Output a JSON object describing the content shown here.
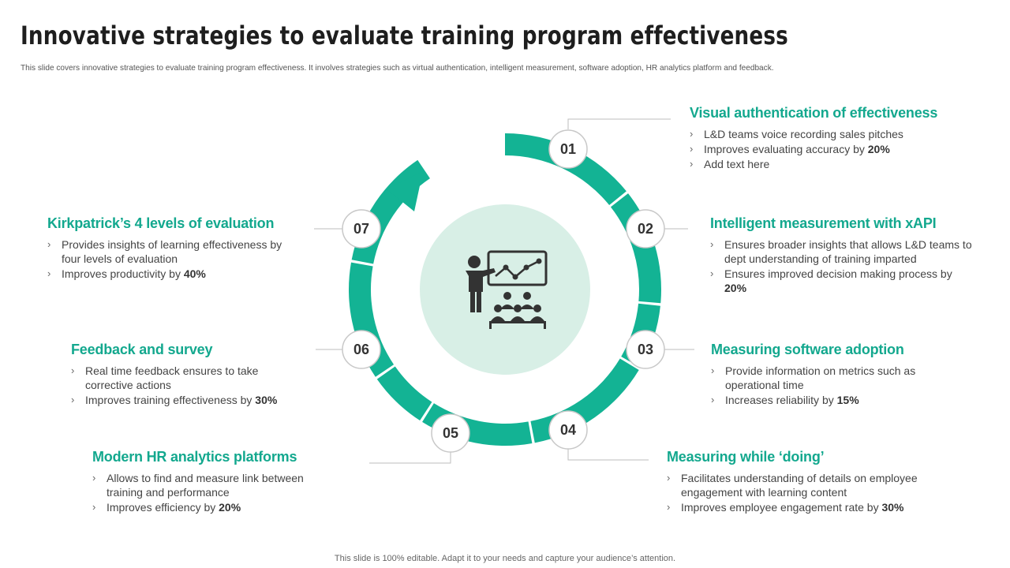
{
  "title": "Innovative strategies to evaluate training program effectiveness",
  "subtitle": "This slide covers innovative strategies to evaluate training program effectiveness. It involves strategies such as virtual authentication, intelligent measurement, software adoption, HR analytics platform and feedback.",
  "footer": "This slide is 100% editable. Adapt it to your needs and capture your audience’s attention.",
  "colors": {
    "accent": "#13b394",
    "heading": "#13a88e",
    "center_disc": "#d8efe6",
    "icon": "#333333"
  },
  "center_icon": "presenter-with-chart-and-audience-icon",
  "steps": [
    {
      "num": "01",
      "title": "Visual authentication of effectiveness",
      "items": [
        {
          "text": "L&D teams voice recording sales pitches",
          "bold": ""
        },
        {
          "text": "Improves evaluating accuracy by ",
          "bold": "20%"
        },
        {
          "text": "Add text here",
          "bold": ""
        }
      ]
    },
    {
      "num": "02",
      "title": "Intelligent measurement with xAPI",
      "items": [
        {
          "text": "Ensures broader insights that allows L&D teams to dept understanding of training imparted",
          "bold": ""
        },
        {
          "text": "Ensures improved decision making process by ",
          "bold": "20%"
        }
      ]
    },
    {
      "num": "03",
      "title": "Measuring software adoption",
      "items": [
        {
          "text": "Provide information on metrics such as operational  time",
          "bold": ""
        },
        {
          "text": "Increases reliability  by ",
          "bold": "15%"
        }
      ]
    },
    {
      "num": "04",
      "title": "Measuring while ‘doing’",
      "items": [
        {
          "text": "Facilitates understanding of details on employee engagement with learning content",
          "bold": ""
        },
        {
          "text": "Improves employee engagement rate by ",
          "bold": "30%"
        }
      ]
    },
    {
      "num": "05",
      "title": "Modern HR analytics platforms",
      "items": [
        {
          "text": "Allows to find and measure link between training and performance",
          "bold": ""
        },
        {
          "text": "Improves efficiency by ",
          "bold": "20%"
        }
      ]
    },
    {
      "num": "06",
      "title": "Feedback and survey",
      "items": [
        {
          "text": "Real time feedback ensures to take corrective actions",
          "bold": ""
        },
        {
          "text": "Improves training effectiveness by ",
          "bold": "30%"
        }
      ]
    },
    {
      "num": "07",
      "title": "Kirkpatrick’s 4 levels of evaluation",
      "items": [
        {
          "text": "Provides insights of learning effectiveness by four levels of evaluation",
          "bold": ""
        },
        {
          "text": "Improves productivity by ",
          "bold": "40%"
        }
      ]
    }
  ]
}
